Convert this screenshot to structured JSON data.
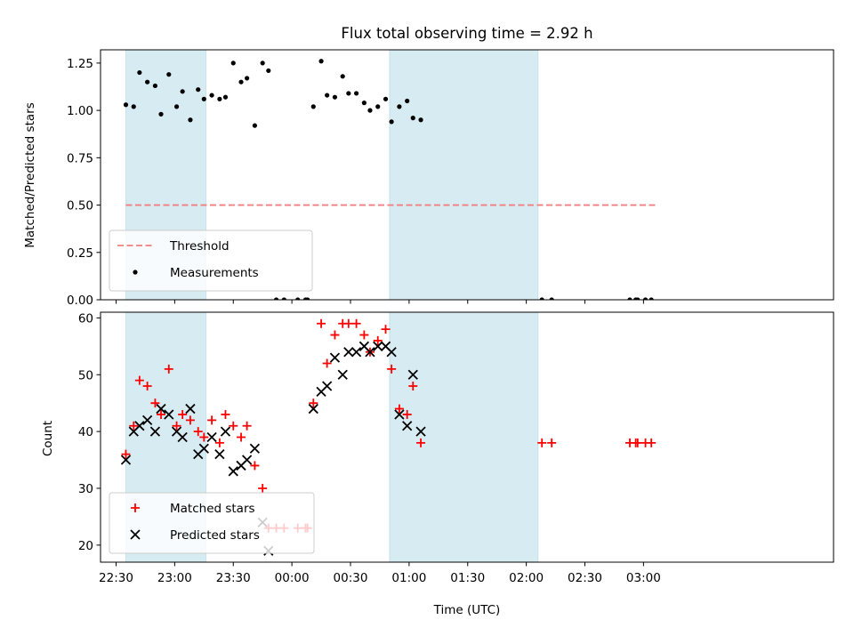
{
  "chart_data": [
    {
      "type": "scatter",
      "title": "Flux total observing time = 2.92 h",
      "ylabel": "Matched/Predicted stars",
      "xlabel": "",
      "ylim": [
        0,
        1.32
      ],
      "yticks": [
        "0.00",
        "0.25",
        "0.50",
        "0.75",
        "1.00",
        "1.25"
      ],
      "shaded_intervals": [
        [
          "22:35",
          "23:16"
        ],
        [
          "00:50",
          "02:06"
        ]
      ],
      "threshold": {
        "name": "Threshold",
        "value": 0.5,
        "x_start": "22:35",
        "x_end": "03:07",
        "color": "#f08080"
      },
      "series": [
        {
          "name": "Measurements",
          "color": "#000000",
          "points": [
            [
              "22:35",
              1.03
            ],
            [
              "22:39",
              1.02
            ],
            [
              "22:42",
              1.2
            ],
            [
              "22:46",
              1.15
            ],
            [
              "22:50",
              1.13
            ],
            [
              "22:53",
              0.98
            ],
            [
              "22:57",
              1.19
            ],
            [
              "23:01",
              1.02
            ],
            [
              "23:04",
              1.1
            ],
            [
              "23:08",
              0.95
            ],
            [
              "23:12",
              1.11
            ],
            [
              "23:15",
              1.06
            ],
            [
              "23:19",
              1.08
            ],
            [
              "23:23",
              1.06
            ],
            [
              "23:26",
              1.07
            ],
            [
              "23:30",
              1.25
            ],
            [
              "23:34",
              1.15
            ],
            [
              "23:37",
              1.17
            ],
            [
              "23:41",
              0.92
            ],
            [
              "23:45",
              1.25
            ],
            [
              "23:48",
              1.21
            ],
            [
              "23:52",
              0.0
            ],
            [
              "23:56",
              0.0
            ],
            [
              "00:03",
              0.0
            ],
            [
              "00:07",
              0.0
            ],
            [
              "00:08",
              0.0
            ],
            [
              "00:11",
              1.02
            ],
            [
              "00:15",
              1.26
            ],
            [
              "00:18",
              1.08
            ],
            [
              "00:22",
              1.07
            ],
            [
              "00:26",
              1.18
            ],
            [
              "00:29",
              1.09
            ],
            [
              "00:33",
              1.09
            ],
            [
              "00:37",
              1.04
            ],
            [
              "00:40",
              1.0
            ],
            [
              "00:44",
              1.02
            ],
            [
              "00:48",
              1.06
            ],
            [
              "00:51",
              0.94
            ],
            [
              "00:55",
              1.02
            ],
            [
              "00:59",
              1.05
            ],
            [
              "01:02",
              0.96
            ],
            [
              "01:06",
              0.95
            ],
            [
              "02:08",
              0.0
            ],
            [
              "02:13",
              0.0
            ],
            [
              "02:53",
              0.0
            ],
            [
              "02:56",
              0.0
            ],
            [
              "02:57",
              0.0
            ],
            [
              "03:01",
              0.0
            ],
            [
              "03:04",
              0.0
            ]
          ]
        }
      ]
    },
    {
      "type": "scatter",
      "title": "",
      "ylabel": "Count",
      "xlabel": "Time (UTC)",
      "ylim": [
        17,
        61
      ],
      "yticks": [
        "20",
        "30",
        "40",
        "50",
        "60"
      ],
      "x_ticks": [
        "22:30",
        "23:00",
        "23:30",
        "00:00",
        "00:30",
        "01:00",
        "01:30",
        "02:00",
        "02:30",
        "03:00"
      ],
      "shaded_intervals": [
        [
          "22:35",
          "23:16"
        ],
        [
          "00:50",
          "02:06"
        ]
      ],
      "series": [
        {
          "name": "Matched stars",
          "marker": "plus",
          "color": "#ff0000",
          "points": [
            [
              "22:35",
              36
            ],
            [
              "22:39",
              41
            ],
            [
              "22:42",
              49
            ],
            [
              "22:46",
              48
            ],
            [
              "22:50",
              45
            ],
            [
              "22:53",
              43
            ],
            [
              "22:57",
              51
            ],
            [
              "23:01",
              41
            ],
            [
              "23:04",
              43
            ],
            [
              "23:08",
              42
            ],
            [
              "23:12",
              40
            ],
            [
              "23:15",
              39
            ],
            [
              "23:19",
              42
            ],
            [
              "23:23",
              38
            ],
            [
              "23:26",
              43
            ],
            [
              "23:30",
              41
            ],
            [
              "23:34",
              39
            ],
            [
              "23:37",
              41
            ],
            [
              "23:41",
              34
            ],
            [
              "23:45",
              30
            ],
            [
              "23:48",
              23
            ],
            [
              "23:52",
              23
            ],
            [
              "23:56",
              23
            ],
            [
              "00:03",
              23
            ],
            [
              "00:07",
              23
            ],
            [
              "00:08",
              23
            ],
            [
              "00:11",
              45
            ],
            [
              "00:15",
              59
            ],
            [
              "00:18",
              52
            ],
            [
              "00:22",
              57
            ],
            [
              "00:26",
              59
            ],
            [
              "00:29",
              59
            ],
            [
              "00:33",
              59
            ],
            [
              "00:37",
              57
            ],
            [
              "00:40",
              54
            ],
            [
              "00:44",
              56
            ],
            [
              "00:48",
              58
            ],
            [
              "00:51",
              51
            ],
            [
              "00:55",
              44
            ],
            [
              "00:59",
              43
            ],
            [
              "01:02",
              48
            ],
            [
              "01:06",
              38
            ],
            [
              "02:08",
              38
            ],
            [
              "02:13",
              38
            ],
            [
              "02:53",
              38
            ],
            [
              "02:56",
              38
            ],
            [
              "02:57",
              38
            ],
            [
              "03:01",
              38
            ],
            [
              "03:04",
              38
            ]
          ]
        },
        {
          "name": "Predicted stars",
          "marker": "x",
          "color": "#000000",
          "points": [
            [
              "22:35",
              35
            ],
            [
              "22:39",
              40
            ],
            [
              "22:42",
              41
            ],
            [
              "22:46",
              42
            ],
            [
              "22:50",
              40
            ],
            [
              "22:53",
              44
            ],
            [
              "22:57",
              43
            ],
            [
              "23:01",
              40
            ],
            [
              "23:04",
              39
            ],
            [
              "23:08",
              44
            ],
            [
              "23:12",
              36
            ],
            [
              "23:15",
              37
            ],
            [
              "23:19",
              39
            ],
            [
              "23:23",
              36
            ],
            [
              "23:26",
              40
            ],
            [
              "23:30",
              33
            ],
            [
              "23:34",
              34
            ],
            [
              "23:37",
              35
            ],
            [
              "23:41",
              37
            ],
            [
              "23:45",
              24
            ],
            [
              "23:48",
              19
            ],
            [
              "00:11",
              44
            ],
            [
              "00:15",
              47
            ],
            [
              "00:18",
              48
            ],
            [
              "00:22",
              53
            ],
            [
              "00:26",
              50
            ],
            [
              "00:29",
              54
            ],
            [
              "00:33",
              54
            ],
            [
              "00:37",
              55
            ],
            [
              "00:40",
              54
            ],
            [
              "00:44",
              55
            ],
            [
              "00:48",
              55
            ],
            [
              "00:51",
              54
            ],
            [
              "00:55",
              43
            ],
            [
              "00:59",
              41
            ],
            [
              "01:02",
              50
            ],
            [
              "01:06",
              40
            ]
          ]
        }
      ]
    }
  ]
}
